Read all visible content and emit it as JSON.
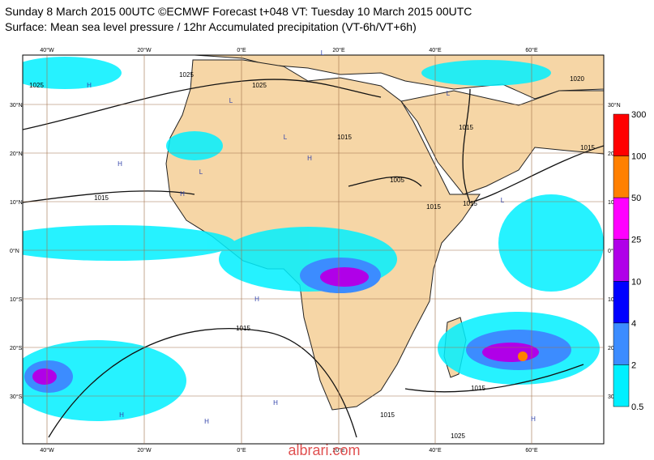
{
  "header": {
    "title_line1": "Sunday 8 March 2015 00UTC ©ECMWF Forecast t+048 VT: Tuesday 10 March 2015 00UTC",
    "title_line2": "Surface: Mean sea level pressure / 12hr Accumulated precipitation (VT-6h/VT+6h)"
  },
  "map": {
    "lon_labels": [
      "40°W",
      "20°W",
      "0°E",
      "20°E",
      "40°E",
      "60°E"
    ],
    "lat_labels": [
      "30°N",
      "20°N",
      "10°N",
      "0°N",
      "10°S",
      "20°S",
      "30°S"
    ],
    "isobar_labels": [
      "1025",
      "1025",
      "1025",
      "1020",
      "1015",
      "1015",
      "1015",
      "1005",
      "1015",
      "1015",
      "1015",
      "1015",
      "1015",
      "1015",
      "1025"
    ],
    "pressure_centres": [
      "H",
      "H",
      "L",
      "L",
      "H",
      "L",
      "H",
      "L",
      "H",
      "H",
      "H",
      "L",
      "L",
      "H",
      "H"
    ]
  },
  "legend": {
    "labels": [
      "300",
      "100",
      "50",
      "25",
      "10",
      "4",
      "2",
      "0.5"
    ],
    "colors": [
      "#ff0000",
      "#ff8000",
      "#ff00ff",
      "#b000e8",
      "#0000ff",
      "#3c8cff",
      "#00f0ff"
    ]
  },
  "watermark": "albrari.com"
}
